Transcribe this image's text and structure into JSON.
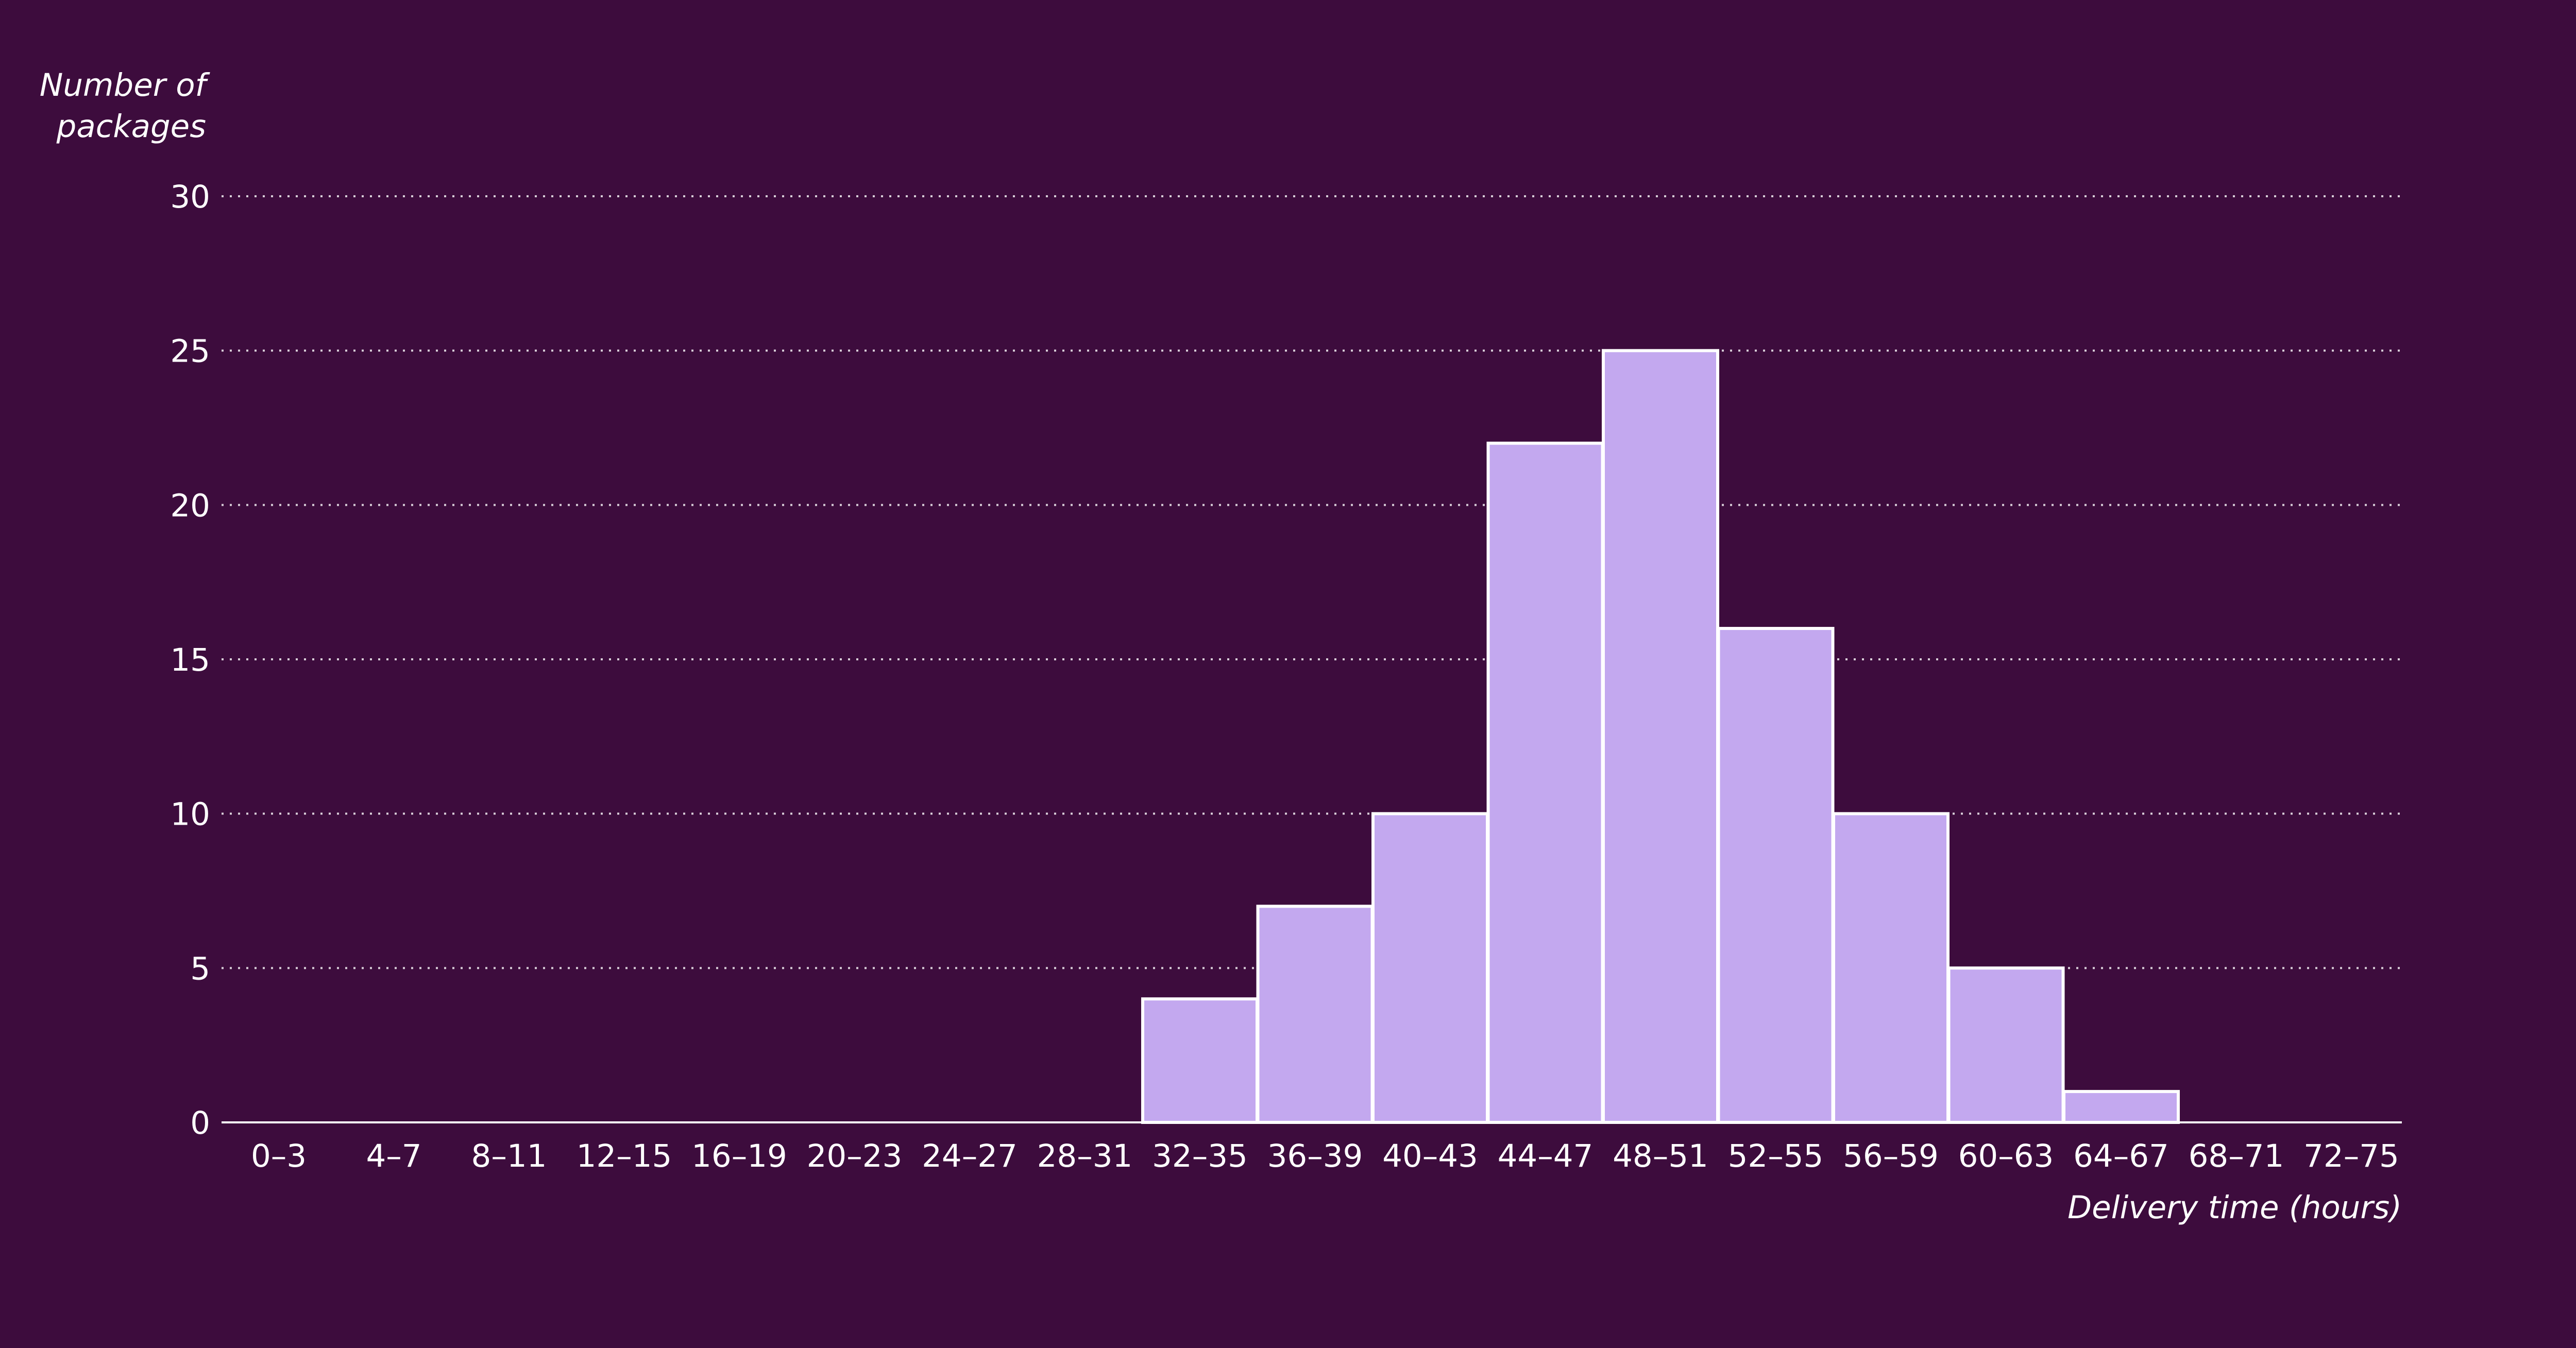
{
  "chart_data": {
    "type": "bar",
    "ylabel_lines": [
      "Number of",
      "packages"
    ],
    "xlabel": "Delivery time (hours)",
    "categories": [
      "0–3",
      "4–7",
      "8–11",
      "12–15",
      "16–19",
      "20–23",
      "24–27",
      "28–31",
      "32–35",
      "36–39",
      "40–43",
      "44–47",
      "48–51",
      "52–55",
      "56–59",
      "60–63",
      "64–67",
      "68–71",
      "72–75"
    ],
    "values": [
      0,
      0,
      0,
      0,
      0,
      0,
      0,
      0,
      4,
      7,
      10,
      22,
      25,
      16,
      10,
      5,
      1,
      0,
      0
    ],
    "y_ticks": [
      "0",
      "5",
      "10",
      "15",
      "20",
      "25",
      "30"
    ],
    "ylim": [
      0,
      30
    ],
    "grid": true,
    "colors": {
      "background": "#3d0c3d",
      "bar": "#c3a8ef",
      "bar_edge": "#ffffff",
      "text": "#ffffff"
    }
  }
}
